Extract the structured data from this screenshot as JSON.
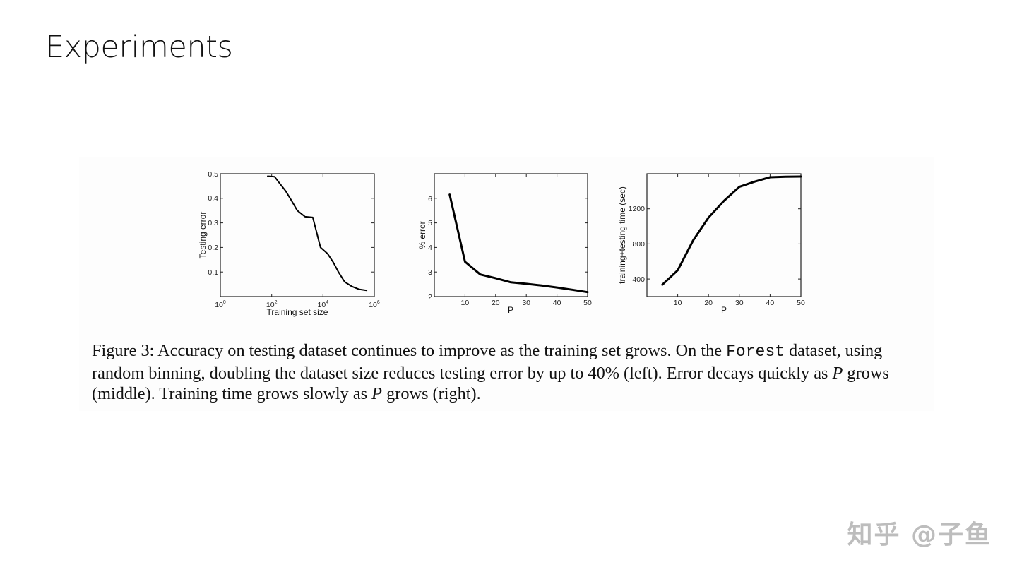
{
  "slide": {
    "title": "Experiments",
    "watermark": "知乎 @子鱼"
  },
  "caption": {
    "label": "Figure 3:",
    "part1": " Accuracy on testing dataset continues to improve as the training set grows. On the ",
    "mono": "Forest",
    "part2": " dataset, using random binning, doubling the dataset size reduces testing error by up to 40% (left). Error decays quickly as ",
    "var1": "P",
    "part3": " grows (middle). Training time grows slowly as ",
    "var2": "P",
    "part4": " grows (right)."
  },
  "chart_data": [
    {
      "type": "line",
      "title": "",
      "xlabel": "Training set size",
      "ylabel": "Testing error",
      "xscale": "log",
      "xlim": [
        1,
        1000000
      ],
      "ylim": [
        0,
        0.5
      ],
      "x_ticks": [
        "10^0",
        "10^2",
        "10^4",
        "10^6"
      ],
      "y_ticks": [
        "0.1",
        "0.2",
        "0.3",
        "0.4",
        "0.5"
      ],
      "grid": false,
      "x": [
        70,
        130,
        200,
        350,
        600,
        1000,
        2000,
        4000,
        8000,
        15000,
        25000,
        40000,
        70000,
        130000,
        250000,
        500000
      ],
      "y": [
        0.49,
        0.488,
        0.462,
        0.43,
        0.39,
        0.35,
        0.325,
        0.322,
        0.2,
        0.175,
        0.14,
        0.1,
        0.06,
        0.042,
        0.03,
        0.025
      ]
    },
    {
      "type": "line",
      "title": "",
      "xlabel": "P",
      "ylabel": "% error",
      "xlim": [
        0,
        50
      ],
      "ylim": [
        2,
        7
      ],
      "x_ticks": [
        "10",
        "20",
        "30",
        "40",
        "50"
      ],
      "y_ticks": [
        "2",
        "3",
        "4",
        "5",
        "6"
      ],
      "grid": false,
      "x": [
        5,
        10,
        15,
        20,
        25,
        30,
        35,
        40,
        45,
        50
      ],
      "y": [
        6.15,
        3.42,
        2.9,
        2.75,
        2.58,
        2.52,
        2.45,
        2.37,
        2.28,
        2.18
      ]
    },
    {
      "type": "line",
      "title": "",
      "xlabel": "P",
      "ylabel": "training+testing time (sec)",
      "xlim": [
        0,
        50
      ],
      "ylim": [
        200,
        1600
      ],
      "x_ticks": [
        "10",
        "20",
        "30",
        "40",
        "50"
      ],
      "y_ticks": [
        "400",
        "800",
        "1200"
      ],
      "grid": false,
      "x": [
        5,
        10,
        15,
        20,
        25,
        30,
        35,
        40,
        45,
        50
      ],
      "y": [
        335,
        500,
        840,
        1100,
        1290,
        1450,
        1510,
        1560,
        1565,
        1568
      ]
    }
  ]
}
